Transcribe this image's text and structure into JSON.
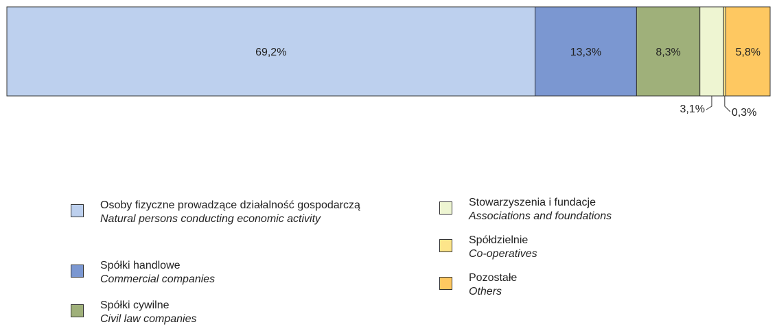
{
  "chart_data": {
    "type": "stacked-bar-100",
    "xlim": [
      0,
      100
    ],
    "series": [
      {
        "name": "Osoby fizyczne prowadzące działalność gospodarczą",
        "name_en": "Natural persons conducting economic activity",
        "color": "#bdd0ee",
        "values": [
          69.2
        ],
        "value_labels": [
          "69,2%"
        ]
      },
      {
        "name": "Spółki handlowe",
        "name_en": "Commercial companies",
        "color": "#7b97d1",
        "values": [
          13.3
        ],
        "value_labels": [
          "13,3%"
        ]
      },
      {
        "name": "Spółki cywilne",
        "name_en": "Civil law companies",
        "color": "#9fb07a",
        "values": [
          8.3
        ],
        "value_labels": [
          "8,3%"
        ]
      },
      {
        "name": "Stowarzyszenia i fundacje",
        "name_en": "Associations and foundations",
        "color": "#eef5d2",
        "values": [
          3.1
        ],
        "value_labels": [
          "3,1%"
        ]
      },
      {
        "name": "Spółdzielnie",
        "name_en": "Co-operatives",
        "color": "#fde58a",
        "values": [
          0.3
        ],
        "value_labels": [
          "0,3%"
        ]
      },
      {
        "name": "Pozostałe",
        "name_en": "Others",
        "color": "#fec861",
        "values": [
          5.8
        ],
        "value_labels": [
          "5,8%"
        ]
      }
    ]
  }
}
